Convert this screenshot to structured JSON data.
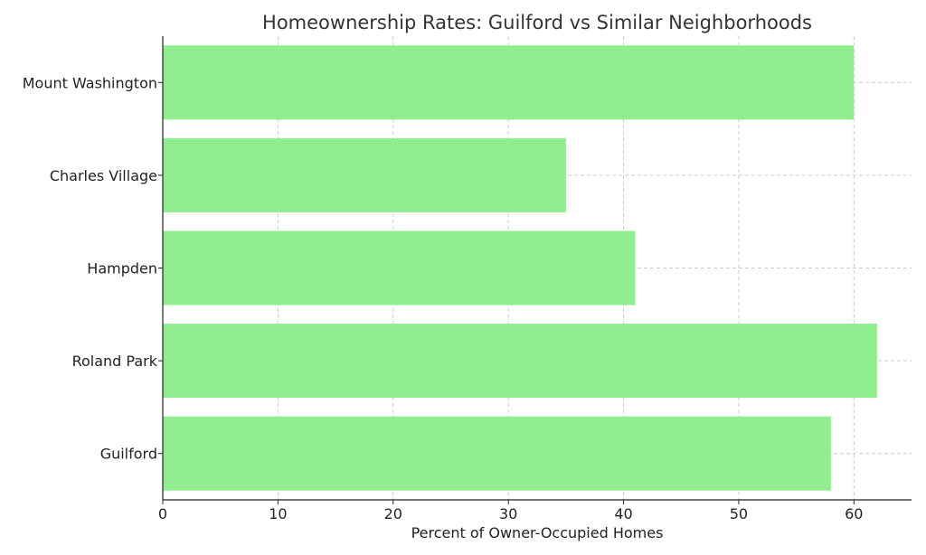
{
  "chart_data": {
    "type": "bar",
    "orientation": "horizontal",
    "title": "Homeownership Rates: Guilford vs Similar Neighborhoods",
    "xlabel": "Percent of Owner-Occupied Homes",
    "ylabel": "",
    "categories": [
      "Guilford",
      "Roland Park",
      "Hampden",
      "Charles Village",
      "Mount Washington"
    ],
    "values": [
      58,
      62,
      41,
      35,
      60
    ],
    "xlim": [
      0,
      65
    ],
    "xticks": [
      0,
      10,
      20,
      30,
      40,
      50,
      60
    ],
    "grid": true,
    "bar_color": "#90ee90"
  }
}
